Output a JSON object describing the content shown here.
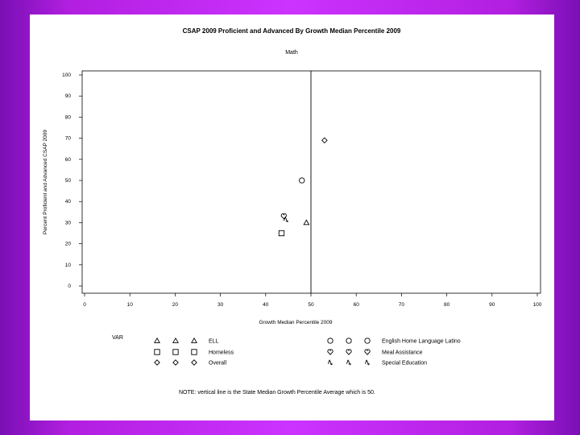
{
  "chart_data": {
    "type": "scatter",
    "title": "CSAP 2009 Proficient and Advanced By Growth Median Percentile 2009",
    "subtitle": "Math",
    "xlabel": "Growth Median Percentile 2009",
    "ylabel": "Percent Proficient and Advanced CSAP 2009",
    "xlim": [
      0,
      100
    ],
    "ylim": [
      0,
      100
    ],
    "xticks": [
      "0",
      "10",
      "20",
      "30",
      "40",
      "50",
      "60",
      "70",
      "80",
      "90",
      "100"
    ],
    "yticks": [
      "0",
      "10",
      "20",
      "30",
      "40",
      "50",
      "60",
      "70",
      "80",
      "90",
      "100"
    ],
    "grid": false,
    "reference_line_x": 50,
    "legend_title": "VAR",
    "legend_position": "bottom",
    "series": [
      {
        "name": "ELL",
        "marker": "triangle",
        "points": [
          [
            49,
            30
          ]
        ]
      },
      {
        "name": "Homeless",
        "marker": "square",
        "points": [
          [
            43.5,
            25
          ]
        ]
      },
      {
        "name": "Overall",
        "marker": "diamond",
        "points": [
          [
            53,
            69
          ]
        ]
      },
      {
        "name": "English Home Language Latino",
        "marker": "circle",
        "points": [
          [
            48,
            50
          ]
        ]
      },
      {
        "name": "Meal Assistance",
        "marker": "heart",
        "points": [
          [
            44,
            33
          ]
        ]
      },
      {
        "name": "Special Education",
        "marker": "spade",
        "points": [
          [
            44.5,
            31.5
          ]
        ]
      }
    ],
    "note": "NOTE: vertical line is the State Median Growth Percentile Average which is 50."
  }
}
